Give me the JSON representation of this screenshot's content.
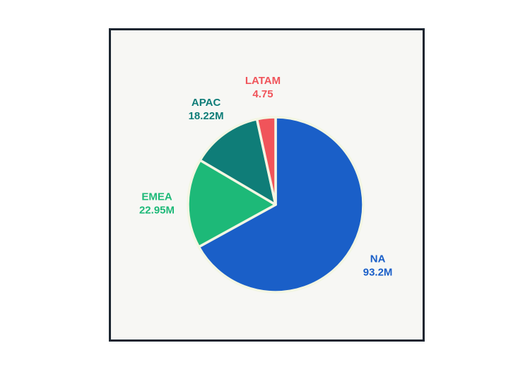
{
  "chart_data": {
    "type": "pie",
    "title": "",
    "start_angle_deg": 0,
    "direction": "clockwise",
    "slices": [
      {
        "name": "NA",
        "label": "93.2M",
        "value": 93.2,
        "color": "#1a5fc8"
      },
      {
        "name": "EMEA",
        "label": "22.95M",
        "value": 22.95,
        "color": "#1db978"
      },
      {
        "name": "APAC",
        "label": "18.22M",
        "value": 18.22,
        "color": "#0f7d78"
      },
      {
        "name": "LATAM",
        "label": "4.75",
        "value": 4.75,
        "color": "#f0545a"
      }
    ],
    "legend": "none",
    "slice_border_color": "#f3f6e3"
  }
}
